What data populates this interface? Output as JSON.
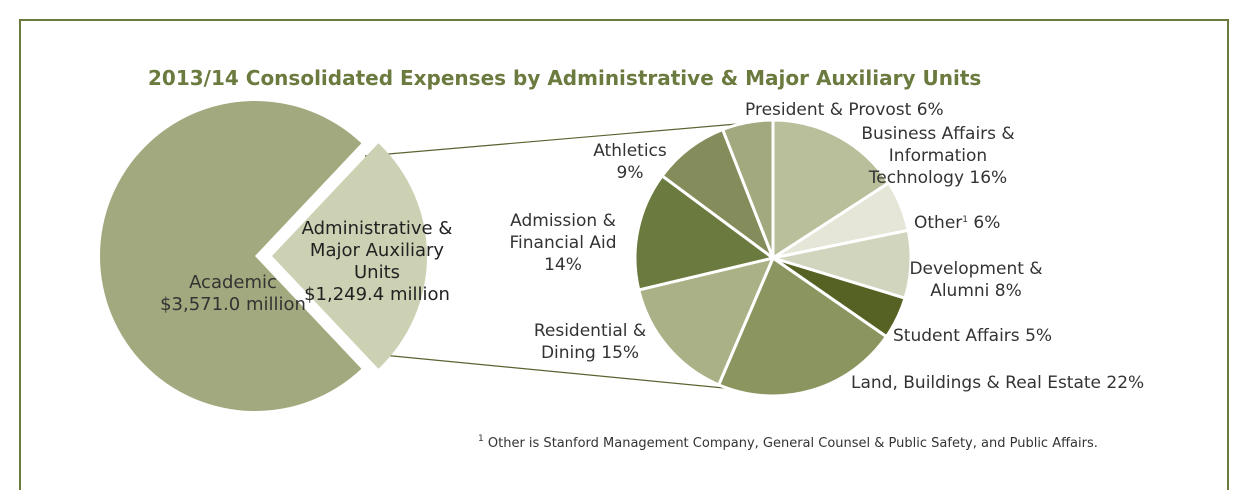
{
  "title": "2013/14 Consolidated Expenses by Administrative & Major Auxiliary Units",
  "chart_data": [
    {
      "type": "pie",
      "categories": [
        "Academic",
        "Administrative & Major Auxiliary Units"
      ],
      "values": [
        3571.0,
        1249.4
      ],
      "value_labels": [
        "$3,571.0 million",
        "$1,249.4 million"
      ],
      "colors": [
        "#a3a97e",
        "#cdd1b3"
      ]
    },
    {
      "type": "pie",
      "categories": [
        "Business Affairs & Information Technology",
        "Other",
        "Development & Alumni",
        "Student Affairs",
        "Land, Buildings & Real Estate",
        "Residential & Dining",
        "Admission & Financial Aid",
        "Athletics",
        "President & Provost"
      ],
      "values": [
        16,
        6,
        8,
        5,
        22,
        15,
        14,
        9,
        6
      ],
      "value_labels": [
        "16%",
        "6%",
        "8%",
        "5%",
        "22%",
        "15%",
        "14%",
        "9%",
        "6%"
      ],
      "colors": [
        "#b9bf9b",
        "#e5e6d8",
        "#d2d5bd",
        "#566223",
        "#8a9560",
        "#aab186",
        "#6b7a3e",
        "#838c5a",
        "#a3a97e"
      ]
    }
  ],
  "footnote": {
    "marker": "1",
    "text": "Other is Stanford Management Company, General Counsel & Public Safety, and Public Affairs."
  }
}
